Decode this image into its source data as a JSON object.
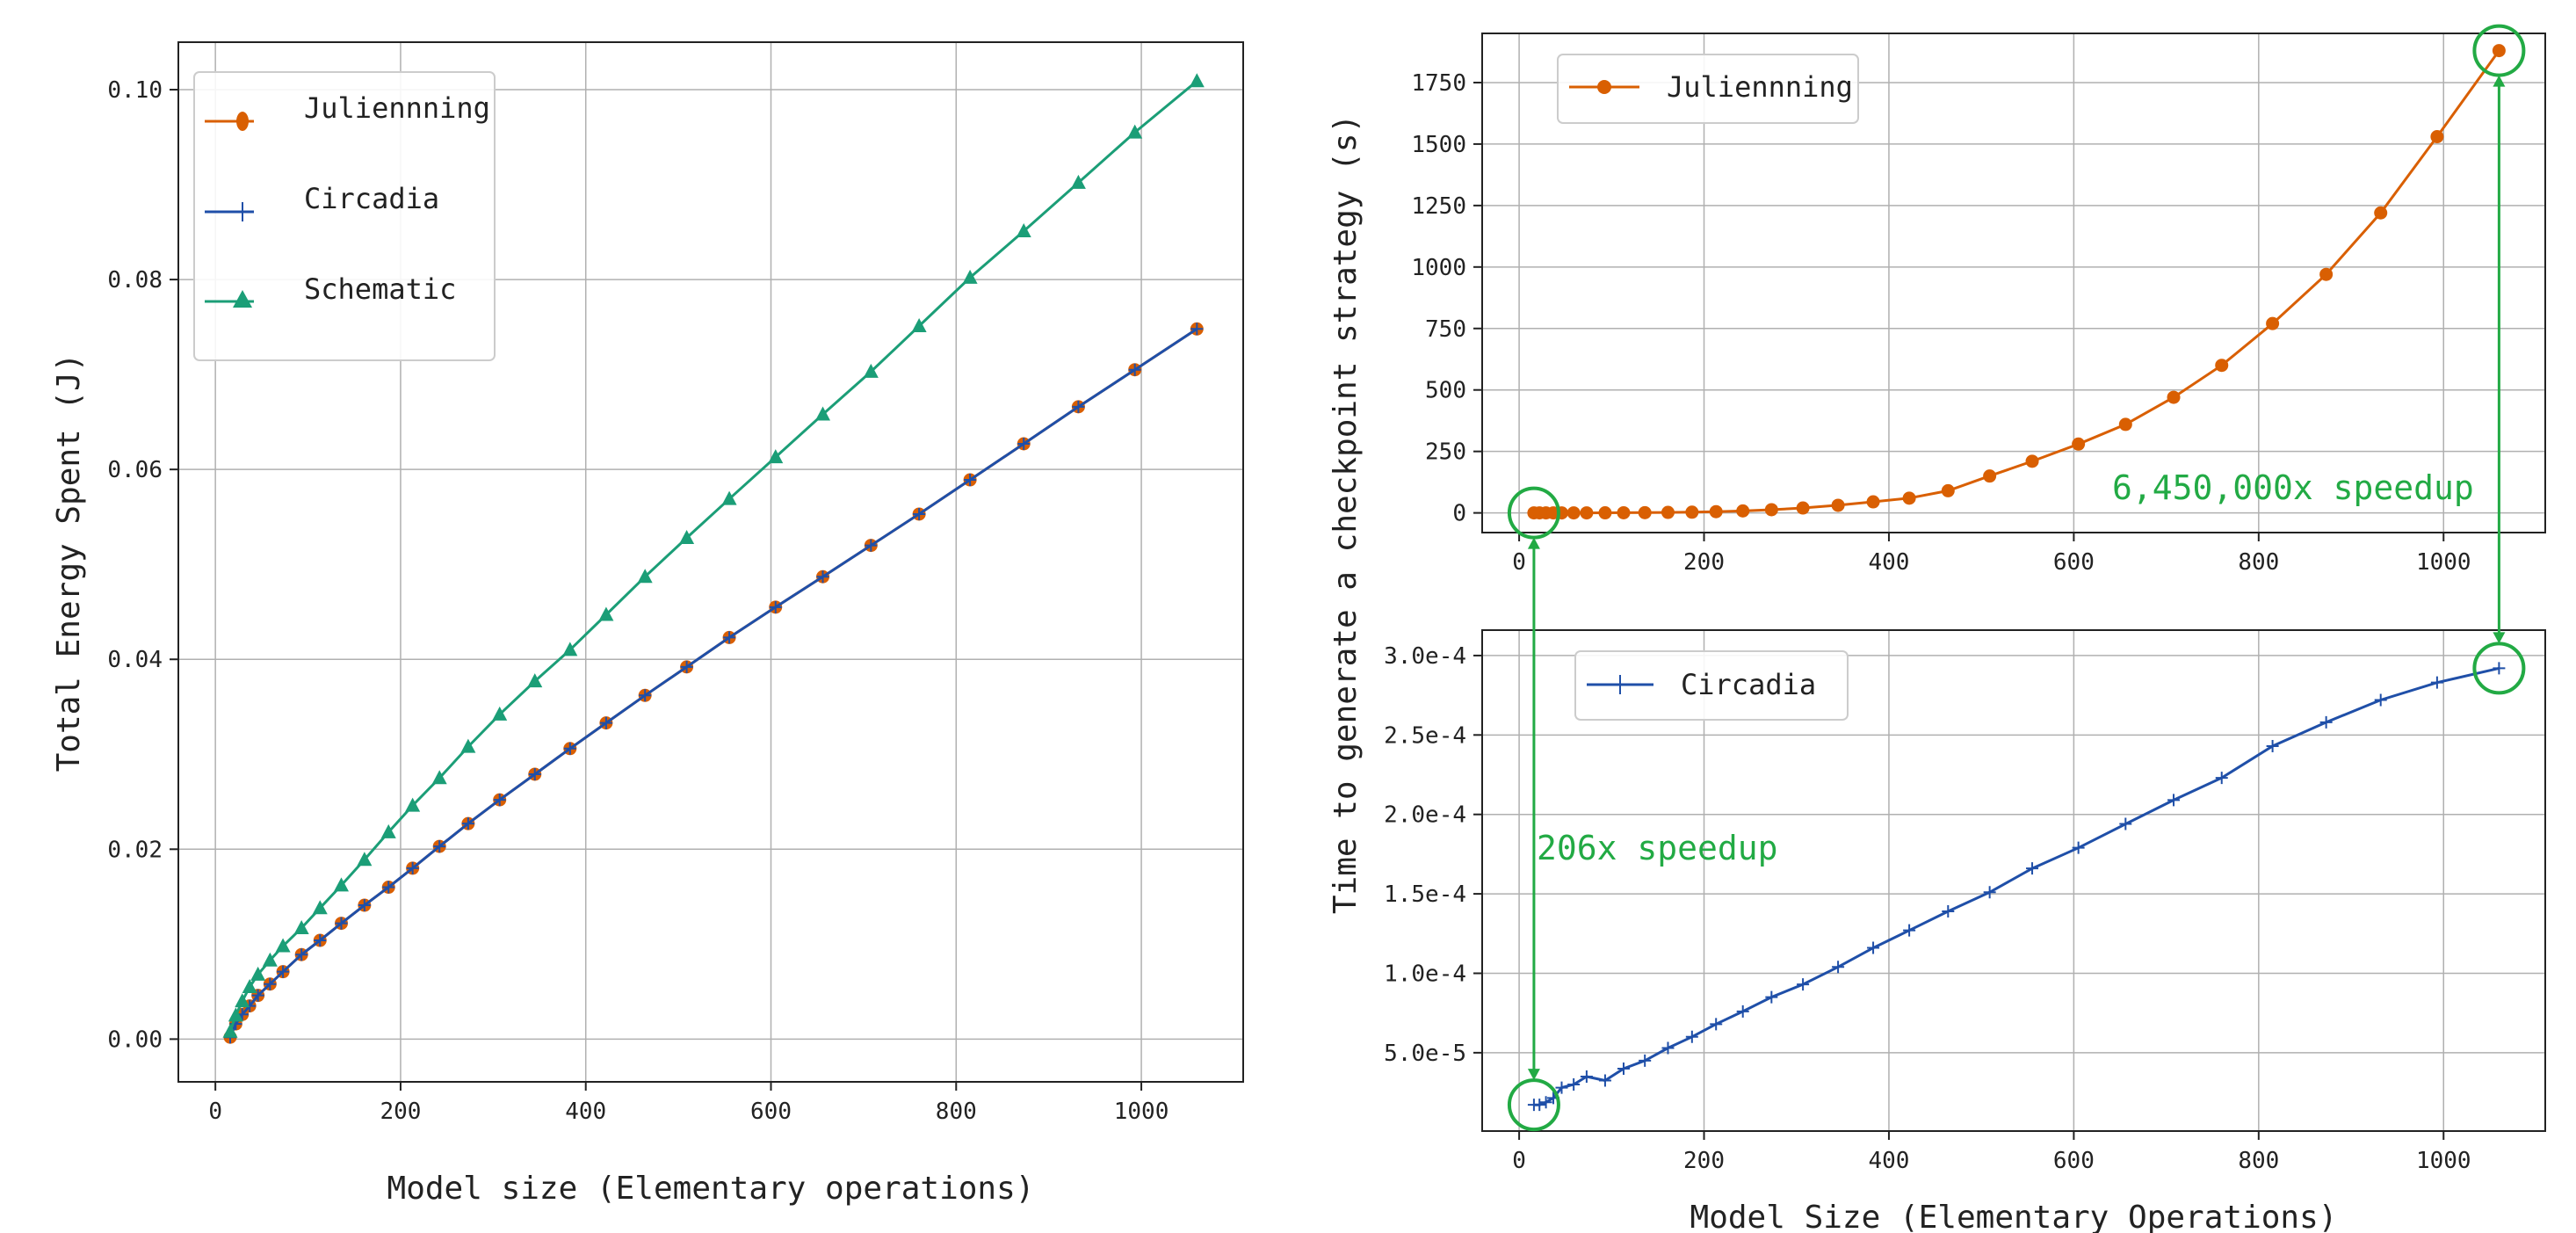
{
  "chart_data": [
    {
      "type": "line",
      "xlabel": "Model size (Elementary operations)",
      "ylabel": "Total Energy Spent (J)",
      "xlim": [
        -40,
        1110
      ],
      "ylim": [
        -0.0045,
        0.105
      ],
      "x_ticks": [
        0,
        200,
        400,
        600,
        800,
        1000
      ],
      "x_tick_labels": [
        "0",
        "200",
        "400",
        "600",
        "800",
        "1000"
      ],
      "y_ticks": [
        0,
        0.02,
        0.04,
        0.06,
        0.08,
        0.1
      ],
      "y_tick_labels": [
        "0.00",
        "0.02",
        "0.04",
        "0.06",
        "0.08",
        "0.10"
      ],
      "grid": true,
      "legend_position": "top-left",
      "x": [
        16,
        22,
        29,
        37,
        46,
        59,
        73,
        93,
        113,
        136,
        161,
        187,
        213,
        242,
        273,
        307,
        345,
        383,
        422,
        464,
        509,
        555,
        605,
        656,
        708,
        760,
        815,
        873,
        932,
        993,
        1060
      ],
      "series": [
        {
          "name": "Juliennning",
          "color": "#d95f02",
          "marker": "circle",
          "values": [
            0.0002,
            0.0016,
            0.0026,
            0.0035,
            0.0046,
            0.0058,
            0.0071,
            0.0089,
            0.0104,
            0.0122,
            0.0141,
            0.016,
            0.018,
            0.0203,
            0.0227,
            0.0252,
            0.0279,
            0.0306,
            0.0333,
            0.0362,
            0.0392,
            0.0423,
            0.0455,
            0.0487,
            0.052,
            0.0553,
            0.0589,
            0.0627,
            0.0666,
            0.0705,
            0.0748
          ]
        },
        {
          "name": "Circadia",
          "color": "#1f4fa8",
          "marker": "plus",
          "values": [
            0.0002,
            0.0016,
            0.0026,
            0.0035,
            0.0046,
            0.0058,
            0.0071,
            0.0089,
            0.0104,
            0.0122,
            0.0141,
            0.016,
            0.018,
            0.0203,
            0.0227,
            0.0252,
            0.0279,
            0.0306,
            0.0333,
            0.0362,
            0.0392,
            0.0423,
            0.0455,
            0.0487,
            0.052,
            0.0553,
            0.0589,
            0.0627,
            0.0666,
            0.0705,
            0.0748
          ]
        },
        {
          "name": "Schematic",
          "color": "#1b9e77",
          "marker": "triangle",
          "values": [
            0.0008,
            0.0025,
            0.004,
            0.0055,
            0.0068,
            0.0083,
            0.0098,
            0.0117,
            0.0138,
            0.0162,
            0.0189,
            0.0218,
            0.0246,
            0.0275,
            0.0308,
            0.0342,
            0.0377,
            0.041,
            0.0447,
            0.0487,
            0.0528,
            0.0569,
            0.0613,
            0.0658,
            0.0703,
            0.0751,
            0.0802,
            0.0851,
            0.0902,
            0.0955,
            0.1009
          ]
        }
      ]
    },
    {
      "type": "line",
      "xlabel": "",
      "ylabel": "",
      "xlim": [
        -40,
        1110
      ],
      "ylim": [
        -80,
        1950
      ],
      "x_ticks": [
        0,
        200,
        400,
        600,
        800,
        1000
      ],
      "x_tick_labels": [
        "0",
        "200",
        "400",
        "600",
        "800",
        "1000"
      ],
      "y_ticks": [
        0,
        250,
        500,
        750,
        1000,
        1250,
        1500,
        1750
      ],
      "y_tick_labels": [
        "0",
        "250",
        "500",
        "750",
        "1000",
        "1250",
        "1500",
        "1750"
      ],
      "grid": true,
      "legend_position": "top-left",
      "x": [
        16,
        22,
        29,
        37,
        46,
        59,
        73,
        93,
        113,
        136,
        161,
        187,
        213,
        242,
        273,
        307,
        345,
        383,
        422,
        464,
        509,
        555,
        605,
        656,
        708,
        760,
        815,
        873,
        932,
        993,
        1060
      ],
      "series": [
        {
          "name": "Juliennning",
          "color": "#d95f02",
          "marker": "circle",
          "values": [
            0,
            0,
            0,
            0,
            0,
            0,
            0.1,
            0.3,
            0.6,
            1,
            2,
            3,
            5,
            8,
            13,
            20,
            31,
            45,
            60,
            90,
            150,
            210,
            280,
            360,
            470,
            600,
            770,
            970,
            1220,
            1530,
            1880
          ]
        }
      ],
      "annotation": "6,450,000x speedup"
    },
    {
      "type": "line",
      "xlabel": "Model Size (Elementary Operations)",
      "ylabel": "Time to generate a checkpoint strategy (s)",
      "xlim": [
        -40,
        1110
      ],
      "ylim": [
        7e-07,
        0.000316
      ],
      "x_ticks": [
        0,
        200,
        400,
        600,
        800,
        1000
      ],
      "x_tick_labels": [
        "0",
        "200",
        "400",
        "600",
        "800",
        "1000"
      ],
      "y_ticks": [
        5e-05,
        0.0001,
        0.00015,
        0.0002,
        0.00025,
        0.0003
      ],
      "y_tick_labels": [
        "5.0e-5",
        "1.0e-4",
        "1.5e-4",
        "2.0e-4",
        "2.5e-4",
        "3.0e-4"
      ],
      "grid": true,
      "legend_position": "top-left",
      "x": [
        16,
        22,
        29,
        37,
        46,
        59,
        73,
        93,
        113,
        136,
        161,
        187,
        213,
        242,
        273,
        307,
        345,
        383,
        422,
        464,
        509,
        555,
        605,
        656,
        708,
        760,
        815,
        873,
        932,
        993,
        1060
      ],
      "series": [
        {
          "name": "Circadia",
          "color": "#1f4fa8",
          "marker": "plus",
          "values": [
            1.72e-05,
            1.72e-05,
            1.88e-05,
            2.15e-05,
            2.8e-05,
            3e-05,
            3.5e-05,
            3.25e-05,
            4e-05,
            4.5e-05,
            5.3e-05,
            6e-05,
            6.8e-05,
            7.6e-05,
            8.5e-05,
            9.3e-05,
            0.000104,
            0.000116,
            0.000127,
            0.000139,
            0.000151,
            0.000166,
            0.000179,
            0.000194,
            0.000209,
            0.000223,
            0.000243,
            0.000258,
            0.000272,
            0.000283,
            0.000292
          ]
        }
      ],
      "annotation": "206x speedup"
    }
  ]
}
